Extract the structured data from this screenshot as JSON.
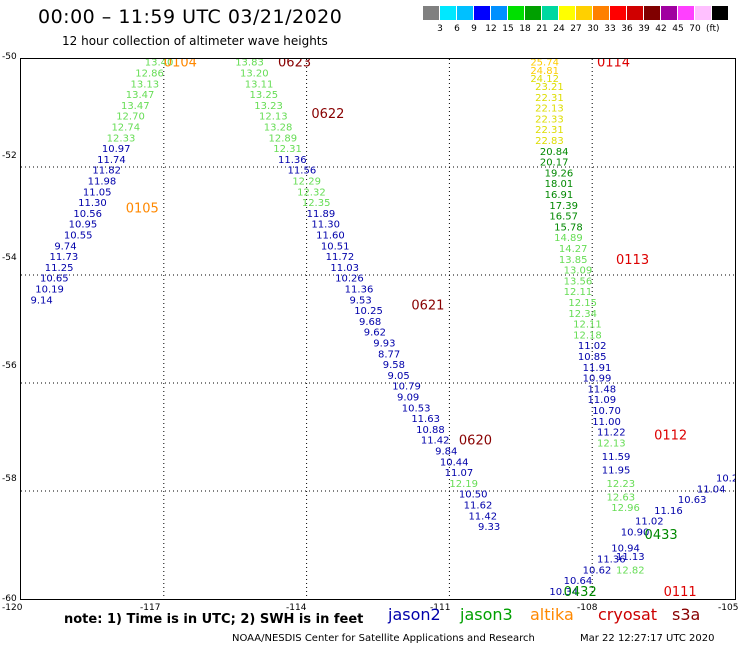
{
  "title": "00:00 – 11:59 UTC 03/21/2020",
  "subtitle": "12 hour collection of altimeter wave heights",
  "scale": {
    "unit": "(ft)",
    "colors": [
      "#808080",
      "#00e8ff",
      "#00c0ff",
      "#0000ff",
      "#0090ff",
      "#00e000",
      "#00a000",
      "#00d8a0",
      "#ffff00",
      "#ffd000",
      "#ff8000",
      "#ff0000",
      "#d00000",
      "#800000",
      "#a000a0",
      "#ff40ff",
      "#ffc0ff",
      "#000000"
    ],
    "labels": [
      "3",
      "6",
      "9",
      "12",
      "15",
      "18",
      "21",
      "24",
      "27",
      "30",
      "33",
      "36",
      "39",
      "42",
      "45",
      "70"
    ]
  },
  "axes": {
    "lat_labels": [
      "-50",
      "-52",
      "-54",
      "-56",
      "-58",
      "-60"
    ],
    "lon_labels": [
      "-120",
      "-117",
      "-114",
      "-111",
      "-108",
      "-105"
    ]
  },
  "note": "note: 1) Time is in UTC; 2) SWH is in feet",
  "satellites": [
    {
      "name": "jason2",
      "color": "#0000aa"
    },
    {
      "name": "jason3",
      "color": "#00a000"
    },
    {
      "name": "altika",
      "color": "#ff8800"
    },
    {
      "name": "cryosat",
      "color": "#cc0000"
    },
    {
      "name": "s3a",
      "color": "#880000"
    }
  ],
  "footer": "NOAA/NESDIS Center for Satellite Applications and Research",
  "footer_date": "Mar 22 12:27:17 UTC 2020",
  "chart_data": {
    "type": "map",
    "xlim": [
      -120,
      -105
    ],
    "ylim": [
      -60,
      -50
    ],
    "grid": true,
    "tracks": [
      {
        "label": "0104",
        "label_color": "#ff8800",
        "label_lon": -117.0,
        "label_lat": -50.05,
        "points": [
          {
            "lon": -117.4,
            "lat": -50.05,
            "v": "13.40",
            "c": "#66dd55"
          },
          {
            "lon": -117.6,
            "lat": -50.25,
            "v": "12.86",
            "c": "#66dd55"
          },
          {
            "lon": -117.7,
            "lat": -50.45,
            "v": "13.13",
            "c": "#66dd55"
          },
          {
            "lon": -117.8,
            "lat": -50.65,
            "v": "13.47",
            "c": "#66dd55"
          },
          {
            "lon": -117.9,
            "lat": -50.85,
            "v": "13.47",
            "c": "#66dd55"
          },
          {
            "lon": -118.0,
            "lat": -51.05,
            "v": "12.70",
            "c": "#66dd55"
          },
          {
            "lon": -118.1,
            "lat": -51.25,
            "v": "12.74",
            "c": "#66dd55"
          },
          {
            "lon": -118.2,
            "lat": -51.45,
            "v": "12.33",
            "c": "#66dd55"
          }
        ]
      },
      {
        "label": "0105",
        "label_color": "#ff8800",
        "label_lon": -117.8,
        "label_lat": -52.75,
        "points": [
          {
            "lon": -118.3,
            "lat": -51.65,
            "v": "10.97",
            "c": "#0000aa"
          },
          {
            "lon": -118.4,
            "lat": -51.85,
            "v": "11.74",
            "c": "#0000aa"
          },
          {
            "lon": -118.5,
            "lat": -52.05,
            "v": "11.82",
            "c": "#0000aa"
          },
          {
            "lon": -118.6,
            "lat": -52.25,
            "v": "11.98",
            "c": "#0000aa"
          },
          {
            "lon": -118.7,
            "lat": -52.45,
            "v": "11.05",
            "c": "#0000aa"
          },
          {
            "lon": -118.8,
            "lat": -52.65,
            "v": "11.30",
            "c": "#0000aa"
          },
          {
            "lon": -118.9,
            "lat": -52.85,
            "v": "10.56",
            "c": "#0000aa"
          },
          {
            "lon": -119.0,
            "lat": -53.05,
            "v": "10.95",
            "c": "#0000aa"
          },
          {
            "lon": -119.1,
            "lat": -53.25,
            "v": "10.55",
            "c": "#0000aa"
          },
          {
            "lon": -119.3,
            "lat": -53.45,
            "v": "9.74",
            "c": "#0000aa"
          },
          {
            "lon": -119.4,
            "lat": -53.65,
            "v": "11.73",
            "c": "#0000aa"
          },
          {
            "lon": -119.5,
            "lat": -53.85,
            "v": "11.25",
            "c": "#0000aa"
          },
          {
            "lon": -119.6,
            "lat": -54.05,
            "v": "10.65",
            "c": "#0000aa"
          },
          {
            "lon": -119.7,
            "lat": -54.25,
            "v": "10.19",
            "c": "#0000aa"
          },
          {
            "lon": -119.8,
            "lat": -54.45,
            "v": "9.14",
            "c": "#0000aa"
          }
        ]
      },
      {
        "label": "0623",
        "label_color": "#880000",
        "label_lon": -114.6,
        "label_lat": -50.05,
        "points": [
          {
            "lon": -115.5,
            "lat": -50.05,
            "v": "13.83",
            "c": "#66dd55"
          },
          {
            "lon": -115.4,
            "lat": -50.25,
            "v": "13.20",
            "c": "#66dd55"
          },
          {
            "lon": -115.3,
            "lat": -50.45,
            "v": "13.11",
            "c": "#66dd55"
          },
          {
            "lon": -115.2,
            "lat": -50.65,
            "v": "13.25",
            "c": "#66dd55"
          },
          {
            "lon": -115.1,
            "lat": -50.85,
            "v": "13.23",
            "c": "#66dd55"
          },
          {
            "lon": -115.0,
            "lat": -51.05,
            "v": "12.13",
            "c": "#66dd55"
          }
        ]
      },
      {
        "label": "0622",
        "label_color": "#880000",
        "label_lon": -113.9,
        "label_lat": -51.0,
        "points": [
          {
            "lon": -114.9,
            "lat": -51.25,
            "v": "13.28",
            "c": "#66dd55"
          },
          {
            "lon": -114.8,
            "lat": -51.45,
            "v": "12.89",
            "c": "#66dd55"
          },
          {
            "lon": -114.7,
            "lat": -51.65,
            "v": "12.31",
            "c": "#66dd55"
          },
          {
            "lon": -114.6,
            "lat": -51.85,
            "v": "11.36",
            "c": "#0000aa"
          },
          {
            "lon": -114.4,
            "lat": -52.05,
            "v": "11.56",
            "c": "#0000aa"
          },
          {
            "lon": -114.3,
            "lat": -52.25,
            "v": "12.29",
            "c": "#66dd55"
          },
          {
            "lon": -114.2,
            "lat": -52.45,
            "v": "12.32",
            "c": "#66dd55"
          },
          {
            "lon": -114.1,
            "lat": -52.65,
            "v": "12.35",
            "c": "#66dd55"
          },
          {
            "lon": -114.0,
            "lat": -52.85,
            "v": "11.89",
            "c": "#0000aa"
          },
          {
            "lon": -113.9,
            "lat": -53.05,
            "v": "11.30",
            "c": "#0000aa"
          },
          {
            "lon": -113.8,
            "lat": -53.25,
            "v": "11.60",
            "c": "#0000aa"
          },
          {
            "lon": -113.7,
            "lat": -53.45,
            "v": "10.51",
            "c": "#0000aa"
          }
        ]
      },
      {
        "label": "0621",
        "label_color": "#880000",
        "label_lon": -111.8,
        "label_lat": -54.55,
        "points": [
          {
            "lon": -113.6,
            "lat": -53.65,
            "v": "11.72",
            "c": "#0000aa"
          },
          {
            "lon": -113.5,
            "lat": -53.85,
            "v": "11.03",
            "c": "#0000aa"
          },
          {
            "lon": -113.4,
            "lat": -54.05,
            "v": "10.26",
            "c": "#0000aa"
          },
          {
            "lon": -113.2,
            "lat": -54.25,
            "v": "11.36",
            "c": "#0000aa"
          },
          {
            "lon": -113.1,
            "lat": -54.45,
            "v": "9.53",
            "c": "#0000aa"
          },
          {
            "lon": -113.0,
            "lat": -54.65,
            "v": "10.25",
            "c": "#0000aa"
          },
          {
            "lon": -112.9,
            "lat": -54.85,
            "v": "9.68",
            "c": "#0000aa"
          },
          {
            "lon": -112.8,
            "lat": -55.05,
            "v": "9.62",
            "c": "#0000aa"
          },
          {
            "lon": -112.6,
            "lat": -55.25,
            "v": "9.93",
            "c": "#0000aa"
          },
          {
            "lon": -112.5,
            "lat": -55.45,
            "v": "8.77",
            "c": "#0000aa"
          },
          {
            "lon": -112.4,
            "lat": -55.65,
            "v": "9.58",
            "c": "#0000aa"
          },
          {
            "lon": -112.3,
            "lat": -55.85,
            "v": "9.05",
            "c": "#0000aa"
          },
          {
            "lon": -112.2,
            "lat": -56.05,
            "v": "10.79",
            "c": "#0000aa"
          },
          {
            "lon": -112.1,
            "lat": -56.25,
            "v": "9.09",
            "c": "#0000aa"
          },
          {
            "lon": -112.0,
            "lat": -56.45,
            "v": "10.53",
            "c": "#0000aa"
          },
          {
            "lon": -111.8,
            "lat": -56.65,
            "v": "11.63",
            "c": "#0000aa"
          },
          {
            "lon": -111.7,
            "lat": -56.85,
            "v": "10.88",
            "c": "#0000aa"
          },
          {
            "lon": -111.6,
            "lat": -57.05,
            "v": "11.42",
            "c": "#0000aa"
          }
        ]
      },
      {
        "label": "0620",
        "label_color": "#880000",
        "label_lon": -110.8,
        "label_lat": -57.05,
        "points": [
          {
            "lon": -111.3,
            "lat": -57.25,
            "v": "9.84",
            "c": "#0000aa"
          },
          {
            "lon": -111.2,
            "lat": -57.45,
            "v": "10.44",
            "c": "#0000aa"
          },
          {
            "lon": -111.1,
            "lat": -57.65,
            "v": "11.07",
            "c": "#0000aa"
          },
          {
            "lon": -111.0,
            "lat": -57.85,
            "v": "12.19",
            "c": "#66dd55"
          },
          {
            "lon": -110.8,
            "lat": -58.05,
            "v": "10.50",
            "c": "#0000aa"
          },
          {
            "lon": -110.7,
            "lat": -58.25,
            "v": "11.62",
            "c": "#0000aa"
          },
          {
            "lon": -110.6,
            "lat": -58.45,
            "v": "11.42",
            "c": "#0000aa"
          },
          {
            "lon": -110.4,
            "lat": -58.65,
            "v": "9.33",
            "c": "#0000aa"
          }
        ]
      },
      {
        "label": "0114",
        "label_color": "#dd0000",
        "label_lon": -107.9,
        "label_lat": -50.05,
        "points": [
          {
            "lon": -109.3,
            "lat": -50.05,
            "v": "25.74",
            "c": "#ffcc00"
          },
          {
            "lon": -109.3,
            "lat": -50.2,
            "v": "24.81",
            "c": "#ffcc00"
          },
          {
            "lon": -109.3,
            "lat": -50.35,
            "v": "24.12",
            "c": "#dddd00"
          },
          {
            "lon": -109.2,
            "lat": -50.5,
            "v": "23.21",
            "c": "#dddd00"
          },
          {
            "lon": -109.2,
            "lat": -50.7,
            "v": "22.31",
            "c": "#dddd00"
          },
          {
            "lon": -109.2,
            "lat": -50.9,
            "v": "22.13",
            "c": "#dddd00"
          },
          {
            "lon": -109.2,
            "lat": -51.1,
            "v": "22.33",
            "c": "#dddd00"
          },
          {
            "lon": -109.2,
            "lat": -51.3,
            "v": "22.31",
            "c": "#dddd00"
          },
          {
            "lon": -109.2,
            "lat": -51.5,
            "v": "22.83",
            "c": "#dddd00"
          }
        ]
      },
      {
        "label": "0113",
        "label_color": "#dd0000",
        "label_lon": -107.5,
        "label_lat": -53.7,
        "points": [
          {
            "lon": -109.1,
            "lat": -51.7,
            "v": "20.84",
            "c": "#008800"
          },
          {
            "lon": -109.1,
            "lat": -51.9,
            "v": "20.17",
            "c": "#008800"
          },
          {
            "lon": -109.0,
            "lat": -52.1,
            "v": "19.26",
            "c": "#008800"
          },
          {
            "lon": -109.0,
            "lat": -52.3,
            "v": "18.01",
            "c": "#008800"
          },
          {
            "lon": -109.0,
            "lat": -52.5,
            "v": "16.91",
            "c": "#008800"
          },
          {
            "lon": -108.9,
            "lat": -52.7,
            "v": "17.39",
            "c": "#008800"
          },
          {
            "lon": -108.9,
            "lat": -52.9,
            "v": "16.57",
            "c": "#008800"
          },
          {
            "lon": -108.8,
            "lat": -53.1,
            "v": "15.78",
            "c": "#008800"
          },
          {
            "lon": -108.8,
            "lat": -53.3,
            "v": "14.89",
            "c": "#66dd55"
          },
          {
            "lon": -108.7,
            "lat": -53.5,
            "v": "14.27",
            "c": "#66dd55"
          },
          {
            "lon": -108.7,
            "lat": -53.7,
            "v": "13.85",
            "c": "#66dd55"
          },
          {
            "lon": -108.6,
            "lat": -53.9,
            "v": "13.09",
            "c": "#66dd55"
          },
          {
            "lon": -108.6,
            "lat": -54.1,
            "v": "13.56",
            "c": "#66dd55"
          },
          {
            "lon": -108.6,
            "lat": -54.3,
            "v": "12.11",
            "c": "#66dd55"
          },
          {
            "lon": -108.5,
            "lat": -54.5,
            "v": "12.15",
            "c": "#66dd55"
          },
          {
            "lon": -108.5,
            "lat": -54.7,
            "v": "12.34",
            "c": "#66dd55"
          },
          {
            "lon": -108.4,
            "lat": -54.9,
            "v": "12.11",
            "c": "#66dd55"
          },
          {
            "lon": -108.4,
            "lat": -55.1,
            "v": "12.18",
            "c": "#66dd55"
          }
        ]
      },
      {
        "label": "0112",
        "label_color": "#dd0000",
        "label_lon": -106.7,
        "label_lat": -56.95,
        "points": [
          {
            "lon": -108.3,
            "lat": -55.3,
            "v": "11.02",
            "c": "#0000aa"
          },
          {
            "lon": -108.3,
            "lat": -55.5,
            "v": "10.85",
            "c": "#0000aa"
          },
          {
            "lon": -108.2,
            "lat": -55.7,
            "v": "11.91",
            "c": "#0000aa"
          },
          {
            "lon": -108.2,
            "lat": -55.9,
            "v": "10.99",
            "c": "#0000aa"
          },
          {
            "lon": -108.1,
            "lat": -56.1,
            "v": "11.48",
            "c": "#0000aa"
          },
          {
            "lon": -108.1,
            "lat": -56.3,
            "v": "11.09",
            "c": "#0000aa"
          },
          {
            "lon": -108.0,
            "lat": -56.5,
            "v": "10.70",
            "c": "#0000aa"
          },
          {
            "lon": -108.0,
            "lat": -56.7,
            "v": "11.00",
            "c": "#0000aa"
          },
          {
            "lon": -107.9,
            "lat": -56.9,
            "v": "11.22",
            "c": "#0000aa"
          },
          {
            "lon": -107.9,
            "lat": -57.1,
            "v": "12.13",
            "c": "#66dd55"
          },
          {
            "lon": -107.8,
            "lat": -57.35,
            "v": "11.59",
            "c": "#0000aa"
          },
          {
            "lon": -107.8,
            "lat": -57.6,
            "v": "11.95",
            "c": "#0000aa"
          },
          {
            "lon": -107.7,
            "lat": -57.85,
            "v": "12.23",
            "c": "#66dd55"
          },
          {
            "lon": -107.7,
            "lat": -58.1,
            "v": "12.63",
            "c": "#66dd55"
          },
          {
            "lon": -107.6,
            "lat": -58.3,
            "v": "12.96",
            "c": "#66dd55"
          }
        ]
      },
      {
        "label": "0111",
        "label_color": "#dd0000",
        "label_lon": -106.5,
        "label_lat": -59.85,
        "points": [
          {
            "lon": -107.5,
            "lat": -59.2,
            "v": "11.13",
            "c": "#0000aa"
          },
          {
            "lon": -107.5,
            "lat": -59.45,
            "v": "12.82",
            "c": "#66dd55"
          }
        ]
      },
      {
        "label": "0433",
        "label_color": "#008800",
        "label_lon": -106.9,
        "label_lat": -58.8,
        "points": [
          {
            "lon": -107.4,
            "lat": -58.75,
            "v": "10.90",
            "c": "#0000aa"
          },
          {
            "lon": -107.1,
            "lat": -58.55,
            "v": "11.02",
            "c": "#0000aa"
          },
          {
            "lon": -106.7,
            "lat": -58.35,
            "v": "11.16",
            "c": "#0000aa"
          },
          {
            "lon": -106.2,
            "lat": -58.15,
            "v": "10.63",
            "c": "#0000aa"
          },
          {
            "lon": -105.8,
            "lat": -57.95,
            "v": "11.04",
            "c": "#0000aa"
          },
          {
            "lon": -105.4,
            "lat": -57.75,
            "v": "10.21",
            "c": "#0000aa"
          },
          {
            "lon": -105.0,
            "lat": -57.55,
            "v": "10.6",
            "c": "#0000aa"
          }
        ]
      },
      {
        "label": "0432",
        "label_color": "#008800",
        "label_lon": -108.6,
        "label_lat": -59.85,
        "points": [
          {
            "lon": -108.9,
            "lat": -59.85,
            "v": "10.34",
            "c": "#0000aa"
          },
          {
            "lon": -108.6,
            "lat": -59.65,
            "v": "10.64",
            "c": "#0000aa"
          },
          {
            "lon": -108.2,
            "lat": -59.45,
            "v": "10.62",
            "c": "#0000aa"
          },
          {
            "lon": -107.9,
            "lat": -59.25,
            "v": "11.36",
            "c": "#0000aa"
          },
          {
            "lon": -107.6,
            "lat": -59.05,
            "v": "10.94",
            "c": "#0000aa"
          }
        ]
      }
    ]
  }
}
